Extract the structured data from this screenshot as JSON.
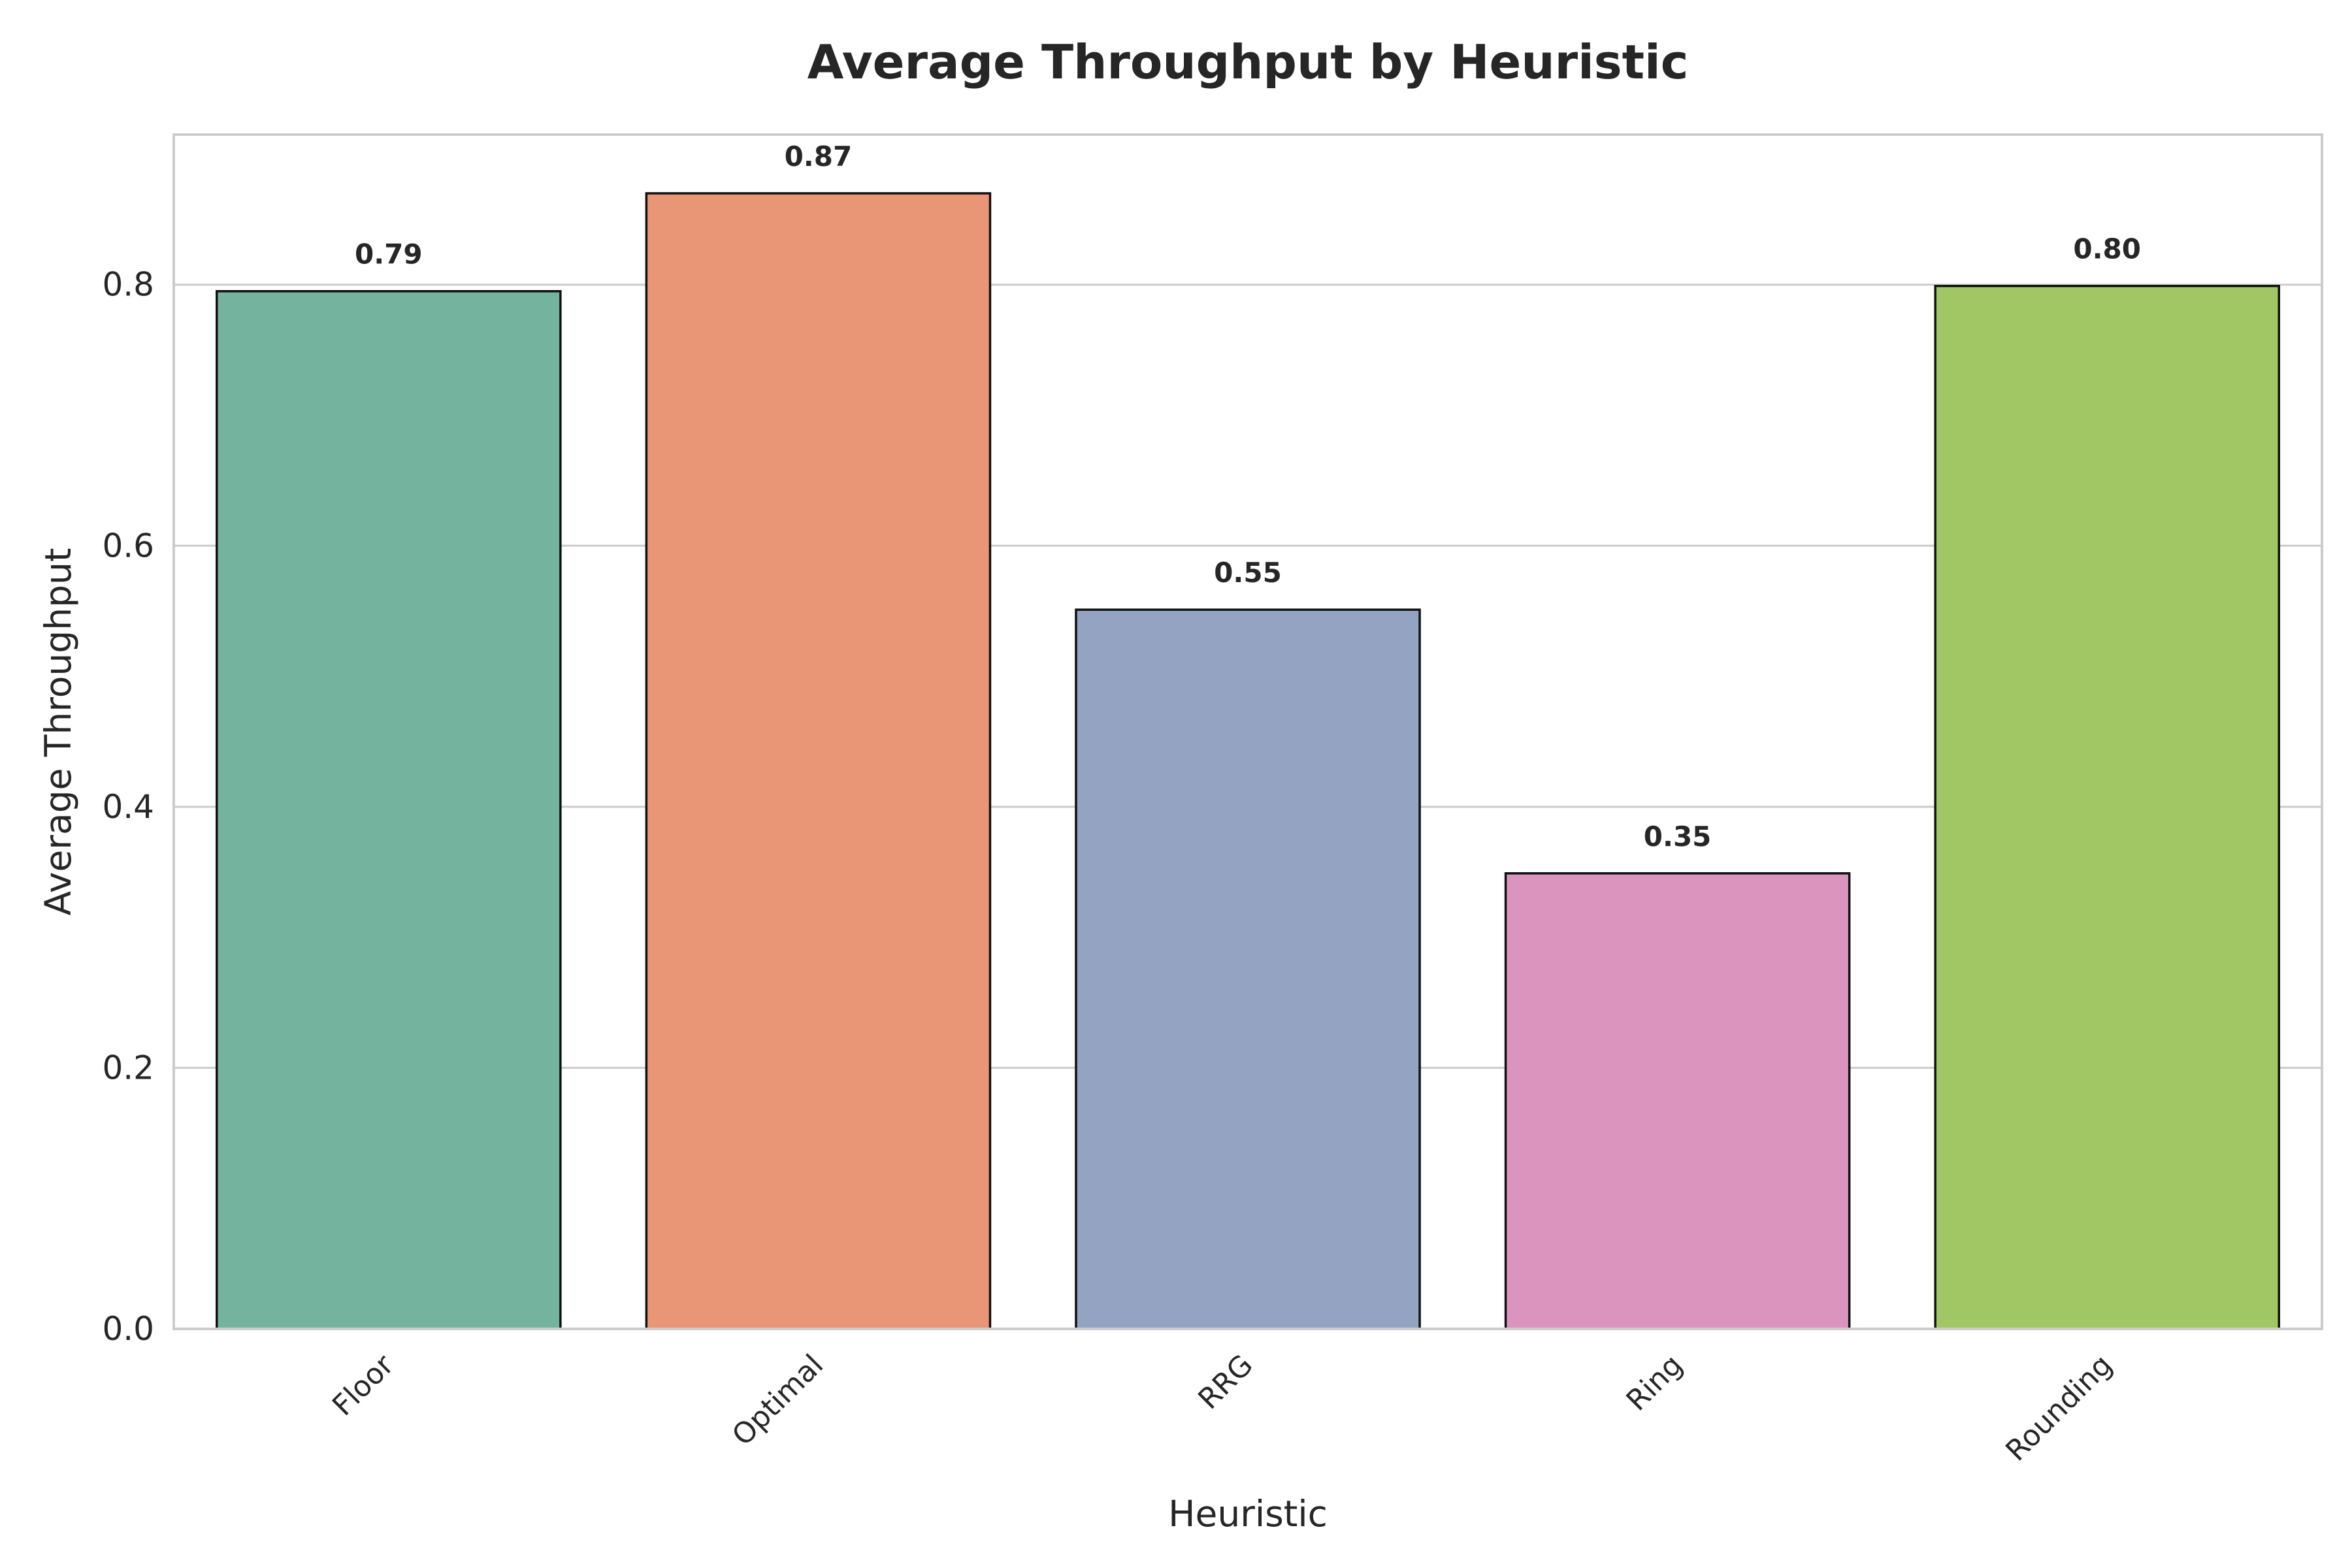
{
  "chart_data": {
    "type": "bar",
    "title": "Average Throughput by Heuristic",
    "xlabel": "Heuristic",
    "ylabel": "Average Throughput",
    "categories": [
      "Floor",
      "Optimal",
      "RRG",
      "Ring",
      "Rounding"
    ],
    "values": [
      0.795,
      0.87,
      0.551,
      0.349,
      0.799
    ],
    "value_labels": [
      "0.79",
      "0.87",
      "0.55",
      "0.35",
      "0.80"
    ],
    "colors": [
      "#74b49f",
      "#e89675",
      "#95a3c3",
      "#db94be",
      "#a1c764"
    ],
    "ylim": [
      0,
      0.915
    ],
    "yticks": [
      0.0,
      0.2,
      0.4,
      0.6,
      0.8
    ],
    "ytick_labels": [
      "0.0",
      "0.2",
      "0.4",
      "0.6",
      "0.8"
    ],
    "grid": "horizontal",
    "legend": "none"
  }
}
